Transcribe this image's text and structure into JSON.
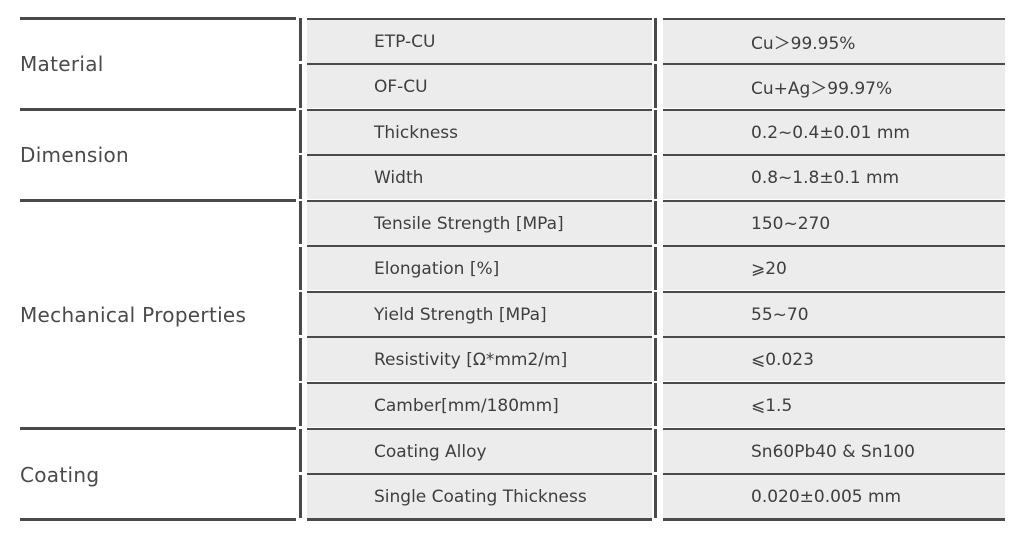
{
  "groups": [
    {
      "label": "Material",
      "rows": [
        {
          "property": "ETP-CU",
          "value": "Cu＞99.95%"
        },
        {
          "property": "OF-CU",
          "value": "Cu+Ag＞99.97%"
        }
      ]
    },
    {
      "label": "Dimension",
      "rows": [
        {
          "property": "Thickness",
          "value": "0.2~0.4±0.01 mm"
        },
        {
          "property": "Width",
          "value": "0.8~1.8±0.1 mm"
        }
      ]
    },
    {
      "label": "Mechanical Properties",
      "rows": [
        {
          "property": "Tensile Strength [MPa]",
          "value": "150~270"
        },
        {
          "property": "Elongation [%]",
          "value": "⩾20"
        },
        {
          "property": "Yield Strength [MPa]",
          "value": "55~70"
        },
        {
          "property": "Resistivity [Ω*mm2/m]",
          "value": "⩽0.023"
        },
        {
          "property": "Camber[mm/180mm]",
          "value": "⩽1.5"
        }
      ]
    },
    {
      "label": "Coating",
      "rows": [
        {
          "property": "Coating Alloy",
          "value": "Sn60Pb40 & Sn100"
        },
        {
          "property": "Single Coating Thickness",
          "value": "0.020±0.005 mm"
        }
      ]
    }
  ]
}
